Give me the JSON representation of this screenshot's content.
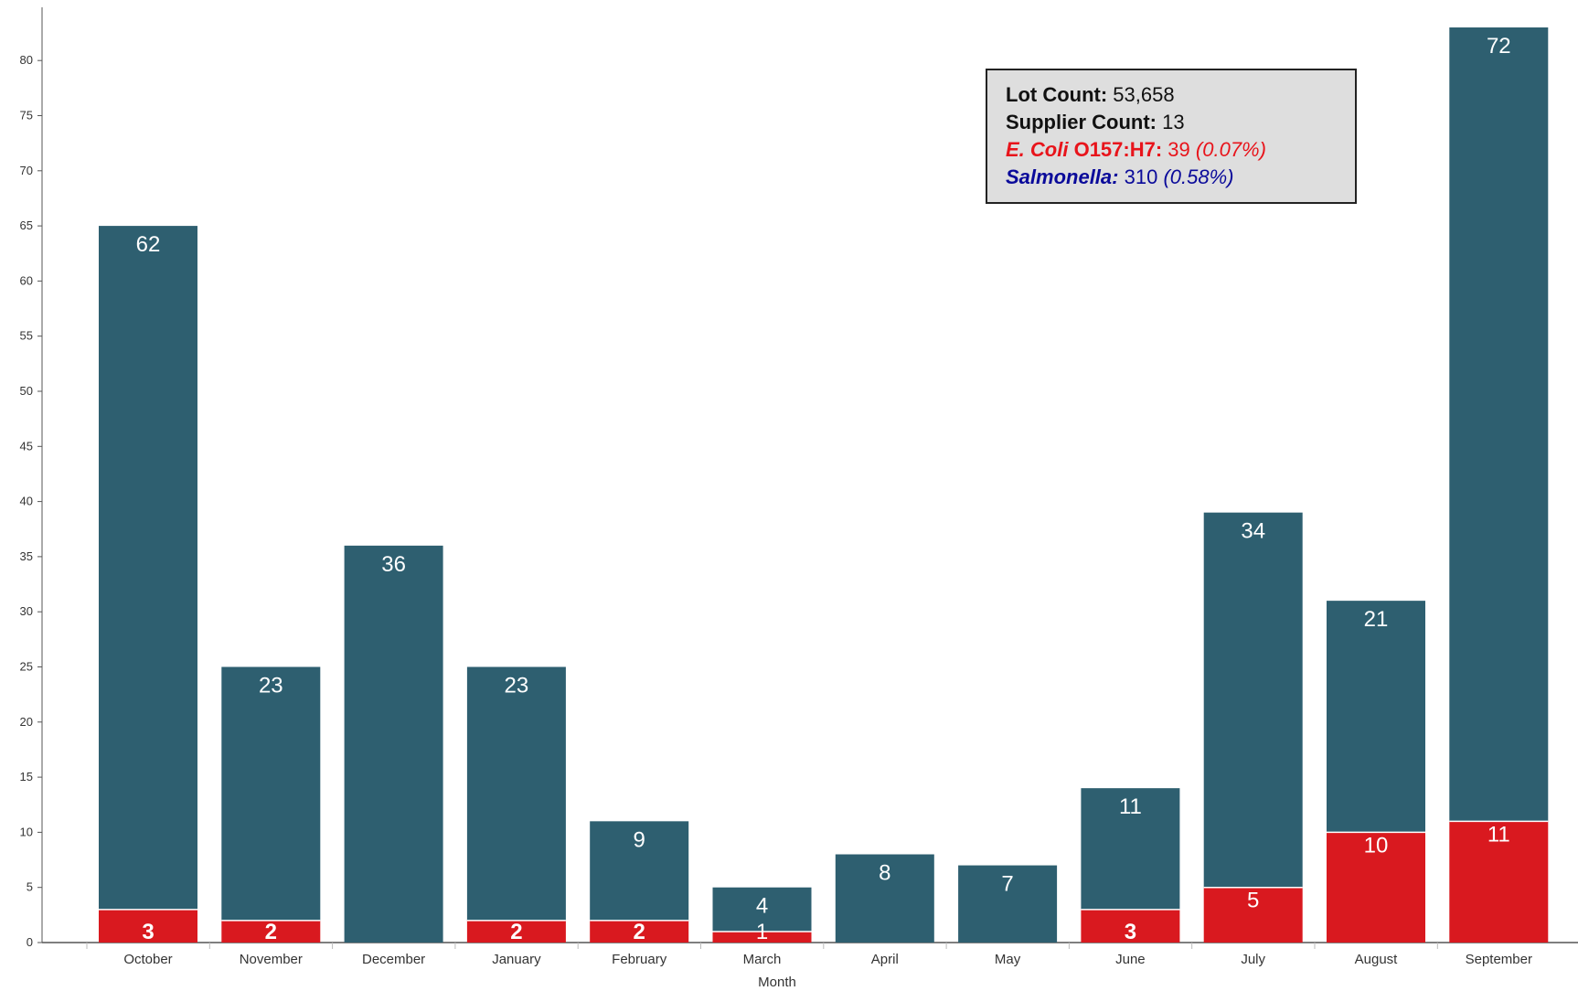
{
  "chart_data": {
    "type": "bar",
    "stacked": true,
    "xlabel": "Month",
    "ylabel": "",
    "ylim": [
      0,
      85
    ],
    "yticks": [
      0,
      5,
      10,
      15,
      20,
      25,
      30,
      35,
      40,
      45,
      50,
      55,
      60,
      65,
      70,
      75,
      80
    ],
    "grid": false,
    "categories": [
      "October",
      "November",
      "December",
      "January",
      "February",
      "March",
      "April",
      "May",
      "June",
      "July",
      "August",
      "September"
    ],
    "series": [
      {
        "values": [
          3,
          2,
          0,
          2,
          2,
          1,
          0,
          0,
          3,
          5,
          10,
          11
        ],
        "labels": [
          "3",
          "2",
          "",
          "2",
          "2",
          "1",
          "",
          "",
          "3",
          "5",
          "10",
          "11"
        ],
        "color": "#d9191f",
        "bold_labels": [
          true,
          true,
          false,
          true,
          true,
          false,
          false,
          false,
          true,
          false,
          false,
          false
        ]
      },
      {
        "values": [
          62,
          23,
          36,
          23,
          9,
          4,
          8,
          7,
          11,
          34,
          21,
          72
        ],
        "labels": [
          "62",
          "23",
          "36",
          "23",
          "9",
          "4",
          "8",
          "7",
          "11",
          "34",
          "21",
          "72"
        ],
        "color": "#2e5f70"
      }
    ]
  },
  "info_box": {
    "lot_count_label": "Lot Count:",
    "lot_count_value": "53,658",
    "supplier_count_label": "Supplier Count:",
    "supplier_count_value": "13",
    "ecoli_label_italic": "E. Coli",
    "ecoli_label_rest": "O157:H7:",
    "ecoli_value": "39",
    "ecoli_pct": "(0.07%)",
    "salmonella_label": "Salmonella:",
    "salmonella_value": "310",
    "salmonella_pct": "(0.58%)"
  },
  "colors": {
    "ecoli": "#e8141b",
    "salmonella": "#0a0a9a",
    "bar_dark": "#2e5f70",
    "bar_red": "#d9191f"
  }
}
